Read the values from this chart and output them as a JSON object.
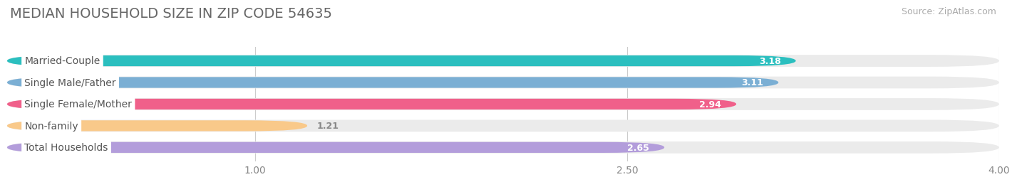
{
  "title": "MEDIAN HOUSEHOLD SIZE IN ZIP CODE 54635",
  "source": "Source: ZipAtlas.com",
  "categories": [
    "Married-Couple",
    "Single Male/Father",
    "Single Female/Mother",
    "Non-family",
    "Total Households"
  ],
  "values": [
    3.18,
    3.11,
    2.94,
    1.21,
    2.65
  ],
  "bar_colors": [
    "#2bbfbf",
    "#7bafd4",
    "#f0608a",
    "#f9c98a",
    "#b39ddb"
  ],
  "xlim_min": 0,
  "xlim_max": 4.0,
  "xticks": [
    1.0,
    2.5,
    4.0
  ],
  "xtick_labels": [
    "1.00",
    "2.50",
    "4.00"
  ],
  "background_color": "#ffffff",
  "bar_bg_color": "#ebebeb",
  "title_fontsize": 14,
  "label_fontsize": 10,
  "value_fontsize": 9,
  "source_fontsize": 9,
  "bar_height": 0.55,
  "bar_gap": 1.0
}
